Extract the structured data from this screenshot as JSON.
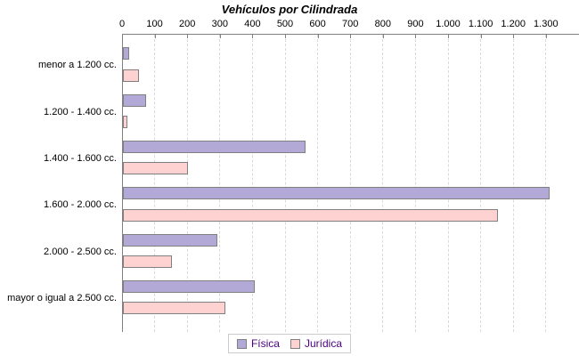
{
  "chart_data": {
    "type": "bar",
    "orientation": "horizontal",
    "title": "Vehículos por Cilindrada",
    "categories": [
      "menor a 1.200 cc.",
      "1.200 - 1.400 cc.",
      "1.400 - 1.600 cc.",
      "1.600 - 2.000 cc.",
      "2.000 - 2.500 cc.",
      "mayor o igual a 2.500 cc."
    ],
    "series": [
      {
        "name": "Física",
        "values": [
          20,
          70,
          560,
          1310,
          290,
          405
        ],
        "fill": "#b2a9d6",
        "border": "#7f7f7f"
      },
      {
        "name": "Jurídica",
        "values": [
          50,
          15,
          200,
          1150,
          150,
          315
        ],
        "fill": "#ffd2d2",
        "border": "#7f7f7f"
      }
    ],
    "x_axis": {
      "tick_labels": [
        "0",
        "100",
        "200",
        "300",
        "400",
        "500",
        "600",
        "700",
        "800",
        "900",
        "1.000",
        "1.100",
        "1.200",
        "1.300"
      ],
      "tick_values": [
        0,
        100,
        200,
        300,
        400,
        500,
        600,
        700,
        800,
        900,
        1000,
        1100,
        1200,
        1300
      ],
      "range": [
        0,
        1400
      ]
    },
    "grid": true,
    "legend_position": "bottom"
  },
  "colors": {
    "fisica_fill": "#b2a9d6",
    "juridica_fill": "#ffd2d2",
    "bar_border": "#7f7f7f",
    "axis": "#808080",
    "gridline": "#d9d9d9",
    "legend_text": "#4b0082",
    "legend_border": "#cccccc",
    "background": "#ffffff"
  }
}
